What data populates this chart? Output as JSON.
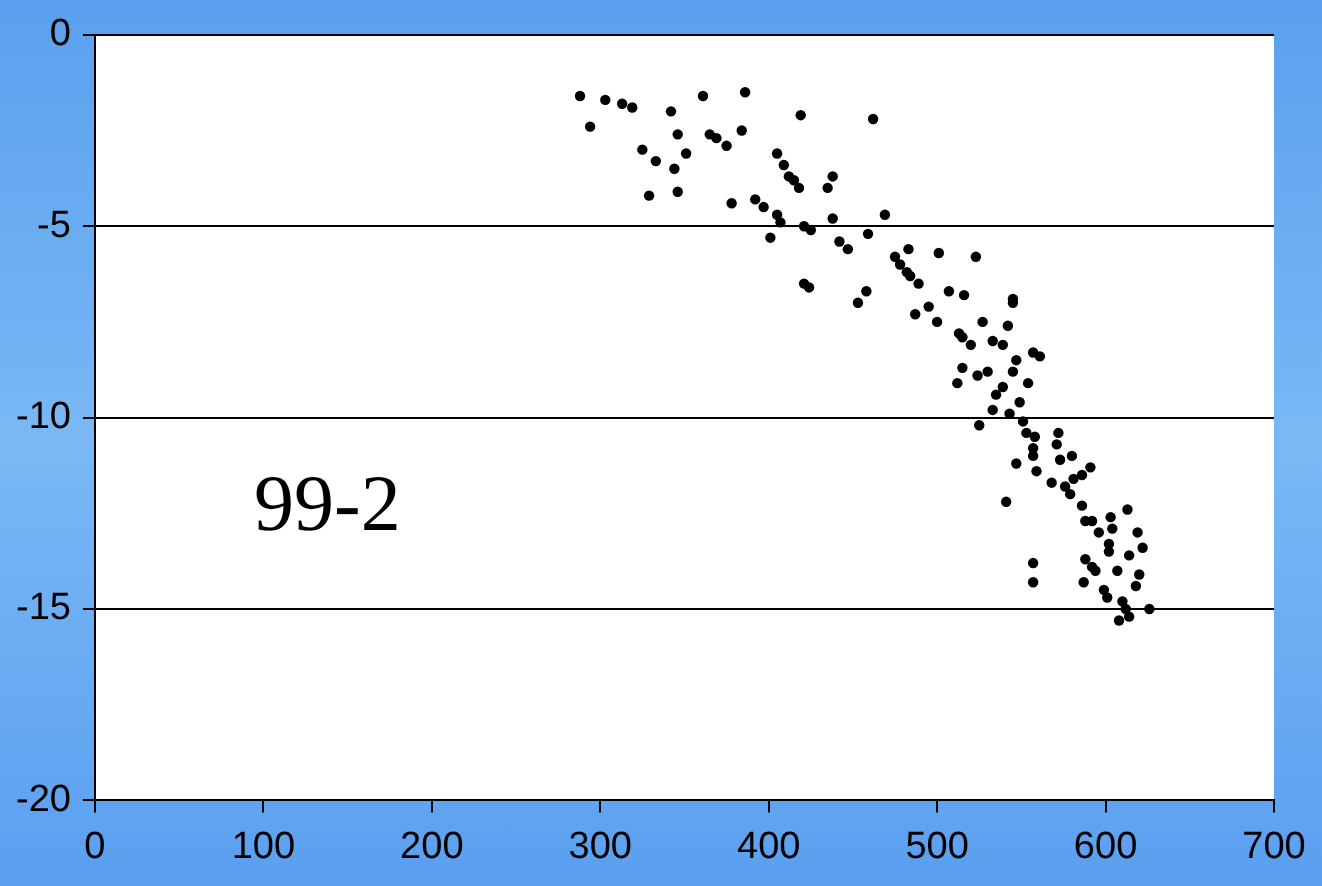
{
  "chart_data": {
    "type": "scatter",
    "color": "#000000",
    "marker": "circle",
    "grid": "y",
    "legend": false,
    "xlim": [
      0,
      700
    ],
    "xticks": [
      0,
      100,
      200,
      300,
      400,
      500,
      600,
      700
    ],
    "ylim": [
      -20,
      0
    ],
    "yticks": [
      -20,
      -15,
      -10,
      -5,
      0
    ],
    "annotations": [
      "99-2"
    ],
    "x": [
      288,
      294,
      303,
      313,
      319,
      342,
      361,
      386,
      346,
      325,
      351,
      333,
      344,
      329,
      346,
      365,
      369,
      375,
      384,
      419,
      462,
      405,
      409,
      412,
      415,
      418,
      438,
      435,
      378,
      392,
      397,
      405,
      407,
      401,
      421,
      425,
      438,
      442,
      447,
      459,
      469,
      421,
      424,
      453,
      458,
      501,
      507,
      475,
      478,
      482,
      484,
      489,
      483,
      523,
      487,
      495,
      500,
      516,
      545,
      545,
      527,
      542,
      513,
      515,
      520,
      533,
      539,
      557,
      561,
      515,
      512,
      524,
      530,
      547,
      545,
      539,
      535,
      554,
      533,
      543,
      549,
      525,
      551,
      553,
      558,
      557,
      557,
      572,
      571,
      580,
      573,
      591,
      547,
      559,
      568,
      576,
      581,
      579,
      541,
      586,
      613,
      603,
      588,
      586,
      592,
      596,
      604,
      602,
      602,
      619,
      622,
      614,
      588,
      592,
      594,
      587,
      599,
      601,
      607,
      620,
      618,
      610,
      612,
      608,
      614,
      626,
      557,
      557
    ],
    "values": [
      -1.6,
      -2.4,
      -1.7,
      -1.8,
      -1.9,
      -2.0,
      -1.6,
      -1.5,
      -2.6,
      -3.0,
      -3.1,
      -3.3,
      -3.5,
      -4.2,
      -4.1,
      -2.6,
      -2.7,
      -2.9,
      -2.5,
      -2.1,
      -2.2,
      -3.1,
      -3.4,
      -3.7,
      -3.8,
      -4.0,
      -3.7,
      -4.0,
      -4.4,
      -4.3,
      -4.5,
      -4.7,
      -4.9,
      -5.3,
      -5.0,
      -5.1,
      -4.8,
      -5.4,
      -5.6,
      -5.2,
      -4.7,
      -6.5,
      -6.6,
      -7.0,
      -6.7,
      -5.7,
      -6.7,
      -5.8,
      -6.0,
      -6.2,
      -6.3,
      -6.5,
      -5.6,
      -5.8,
      -7.3,
      -7.1,
      -7.5,
      -6.8,
      -6.9,
      -7.0,
      -7.5,
      -7.6,
      -7.8,
      -7.9,
      -8.1,
      -8.0,
      -8.1,
      -8.3,
      -8.4,
      -8.7,
      -9.1,
      -8.9,
      -8.8,
      -8.5,
      -8.8,
      -9.2,
      -9.4,
      -9.1,
      -9.8,
      -9.9,
      -9.6,
      -10.2,
      -10.1,
      -10.4,
      -10.5,
      -10.8,
      -11.0,
      -10.4,
      -10.7,
      -11.0,
      -11.1,
      -11.3,
      -11.2,
      -11.4,
      -11.7,
      -11.8,
      -11.6,
      -12.0,
      -12.2,
      -12.3,
      -12.4,
      -12.6,
      -12.7,
      -11.5,
      -12.7,
      -13.0,
      -12.9,
      -13.3,
      -13.5,
      -13.0,
      -13.4,
      -13.6,
      -13.7,
      -13.9,
      -14.0,
      -14.3,
      -14.5,
      -14.7,
      -14.0,
      -14.1,
      -14.4,
      -14.8,
      -15.0,
      -15.3,
      -15.2,
      -15.0,
      -13.8,
      -14.3
    ]
  }
}
